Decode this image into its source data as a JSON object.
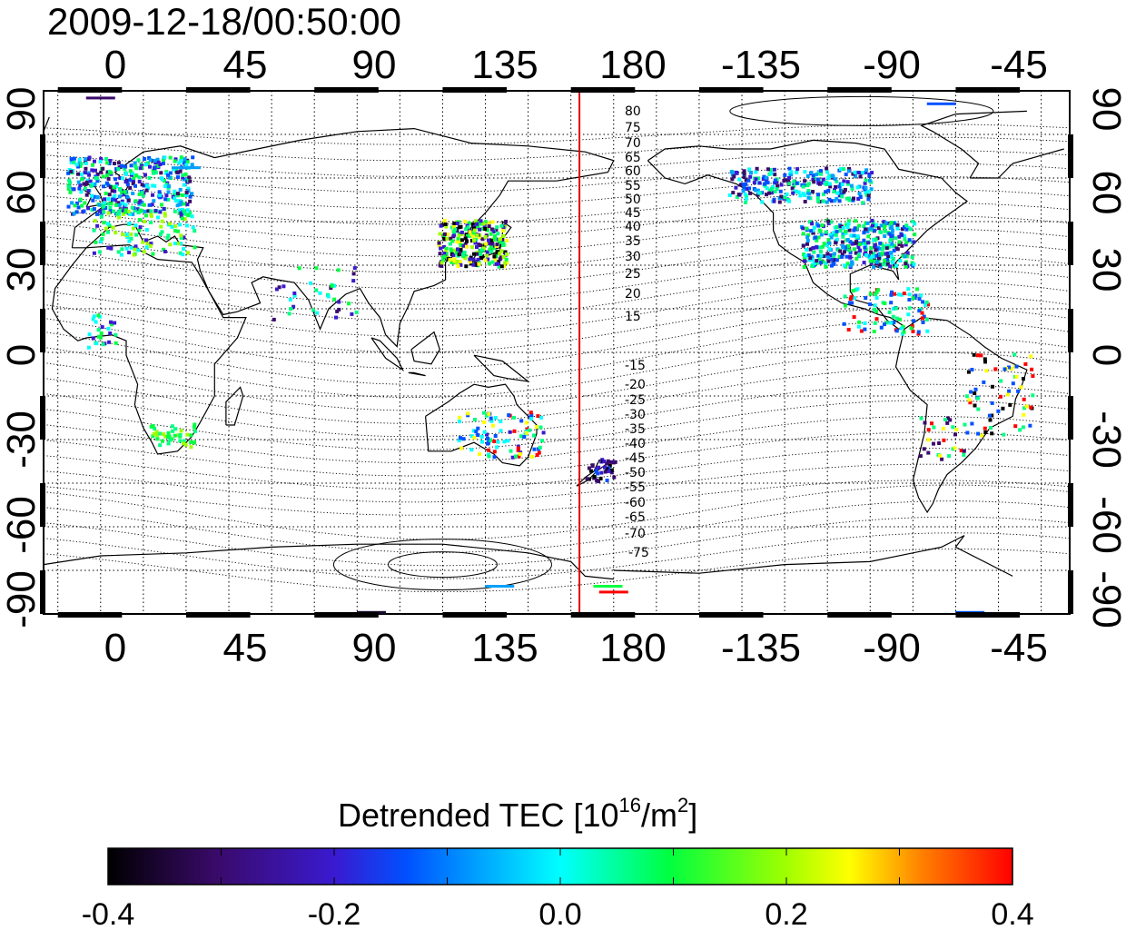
{
  "timestamp": "2009-12-18/00:50:00",
  "top_lon_labels": [
    "0",
    "45",
    "90",
    "135",
    "180",
    "-135",
    "-90",
    "-45"
  ],
  "bottom_lon_labels": [
    "0",
    "45",
    "90",
    "135",
    "180",
    "-135",
    "-90",
    "-45"
  ],
  "left_lat_labels": [
    "90",
    "60",
    "30",
    "0",
    "-30",
    "-60",
    "-90"
  ],
  "right_lat_labels": [
    "90",
    "60",
    "30",
    "0",
    "-30",
    "-60",
    "-90"
  ],
  "north_mlat_labels": [
    "80",
    "75",
    "70",
    "65",
    "60",
    "55",
    "50",
    "45",
    "40",
    "35",
    "30",
    "25",
    "20",
    "15"
  ],
  "south_mlat_labels": [
    "-15",
    "-20",
    "-25",
    "-30",
    "-35",
    "-40",
    "-45",
    "-50",
    "-55",
    "-60",
    "-65",
    "-70",
    "-75"
  ],
  "colorbar": {
    "title_main": "Detrended TEC  [10",
    "title_exp1": "16",
    "title_mid": "/m",
    "title_exp2": "2",
    "title_end": "]",
    "labels": [
      "-0.4",
      "-0.2",
      "0.0",
      "0.2",
      "0.4"
    ],
    "min": -0.4,
    "max": 0.4
  },
  "map": {
    "lon_range": [
      -20,
      340
    ],
    "lat_range": [
      -90,
      90
    ],
    "terminator_lon": 168,
    "terminator_color": "#e00000",
    "coastline_color": "#000000"
  }
}
